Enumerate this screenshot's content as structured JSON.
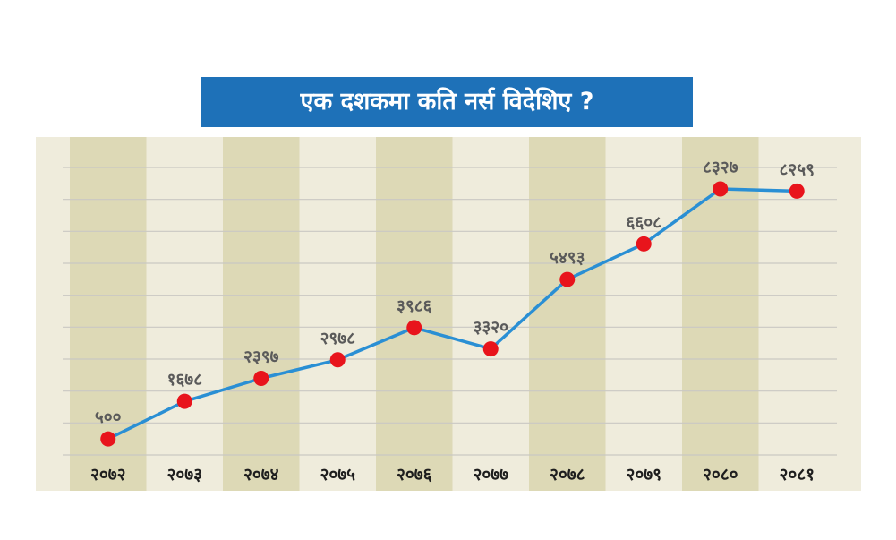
{
  "chart_data": {
    "type": "line",
    "title": "एक दशकमा कति नर्स विदेशिए ?",
    "xlabel": "",
    "ylabel": "",
    "categories": [
      "२०७२",
      "२०७३",
      "२०७४",
      "२०७५",
      "२०७६",
      "२०७७",
      "२०७८",
      "२०७९",
      "२०८०",
      "२०८१"
    ],
    "values": [
      500,
      1678,
      2397,
      2978,
      3986,
      3320,
      5493,
      6608,
      8327,
      8259
    ],
    "value_labels": [
      "५००",
      "१६७८",
      "२३९७",
      "२९७८",
      "३९८६",
      "३३२०",
      "५४९३",
      "६६०८",
      "८३२७",
      "८२५९"
    ],
    "ylim": [
      0,
      9000
    ],
    "grid": true,
    "legend": "none",
    "colors": {
      "title_bg": "#1e71b8",
      "title_text": "#ffffff",
      "line": "#2a8fd4",
      "marker": "#e8141c",
      "band_light": "#efecdc",
      "band_dark": "#ddd9b6",
      "gridline": "#c9c8c3",
      "label_text": "#5a5a5a",
      "axis_text": "#1e1e1e"
    }
  }
}
